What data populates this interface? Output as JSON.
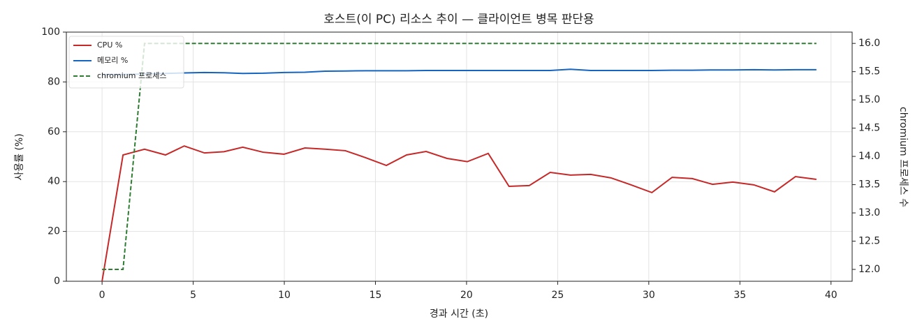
{
  "chart_data": {
    "type": "line",
    "title": "호스트(이 PC) 리소스 추이 — 클라이언트 병목 판단용",
    "x_label": "경과 시간 (초)",
    "y_label": "사용률 (%)",
    "y2_label": "chromium 프로세스 수",
    "x": [
      0,
      1.15,
      2.33,
      3.48,
      4.51,
      5.62,
      6.69,
      7.72,
      8.83,
      9.98,
      11.13,
      12.24,
      13.35,
      14.46,
      15.6,
      16.71,
      17.78,
      18.93,
      20.04,
      21.19,
      22.33,
      23.44,
      24.59,
      25.7,
      26.81,
      27.92,
      29.02,
      30.17,
      31.28,
      32.39,
      33.5,
      34.61,
      35.76,
      36.9,
      38.05,
      39.2
    ],
    "series": [
      {
        "name": "CPU %",
        "color": "#c62828",
        "values": [
          0,
          50.7,
          53,
          50.7,
          54.3,
          51.5,
          52,
          53.8,
          51.8,
          51,
          53.5,
          53,
          52.4,
          49.6,
          46.5,
          50.7,
          52.1,
          49.3,
          48,
          51.3,
          38.1,
          38.4,
          43.7,
          42.6,
          42.9,
          41.5,
          38.7,
          35.6,
          41.7,
          41.2,
          38.9,
          39.8,
          38.7,
          35.9,
          42,
          40.9
        ]
      },
      {
        "name": "메모리 %",
        "color": "#1565c0",
        "values": [
          83.0,
          83.0,
          83.2,
          83.4,
          83.6,
          83.8,
          83.7,
          83.4,
          83.5,
          83.8,
          83.9,
          84.3,
          84.4,
          84.5,
          84.5,
          84.5,
          84.6,
          84.6,
          84.6,
          84.6,
          84.6,
          84.6,
          84.6,
          85.1,
          84.6,
          84.6,
          84.6,
          84.6,
          84.7,
          84.7,
          84.8,
          84.8,
          84.9,
          84.8,
          84.9,
          84.9
        ]
      },
      {
        "name": "chromium 프로세스",
        "color": "#2e7d32",
        "dashed": true,
        "axis": "y2",
        "values": [
          12,
          12,
          16,
          16,
          16,
          16,
          16,
          16,
          16,
          16,
          16,
          16,
          16,
          16,
          16,
          16,
          16,
          16,
          16,
          16,
          16,
          16,
          16,
          16,
          16,
          16,
          16,
          16,
          16,
          16,
          16,
          16,
          16,
          16,
          16,
          16
        ]
      }
    ],
    "xlim": [
      -1.96,
      41.16
    ],
    "xticks": [
      0,
      5,
      10,
      15,
      20,
      25,
      30,
      35,
      40
    ],
    "ylim": [
      0,
      100
    ],
    "yticks": [
      0,
      20,
      40,
      60,
      80,
      100
    ],
    "y2lim": [
      11.79,
      16.2
    ],
    "y2ticks": [
      {
        "value": 12,
        "label": "12.0"
      },
      12.5,
      {
        "value": 13,
        "label": "13.0"
      },
      13.5,
      {
        "value": 14,
        "label": "14.0"
      },
      14.5,
      {
        "value": 15,
        "label": "15.0"
      },
      15.5,
      {
        "value": 16,
        "label": "16.0"
      }
    ],
    "grid": true,
    "legend": "upper-left"
  }
}
